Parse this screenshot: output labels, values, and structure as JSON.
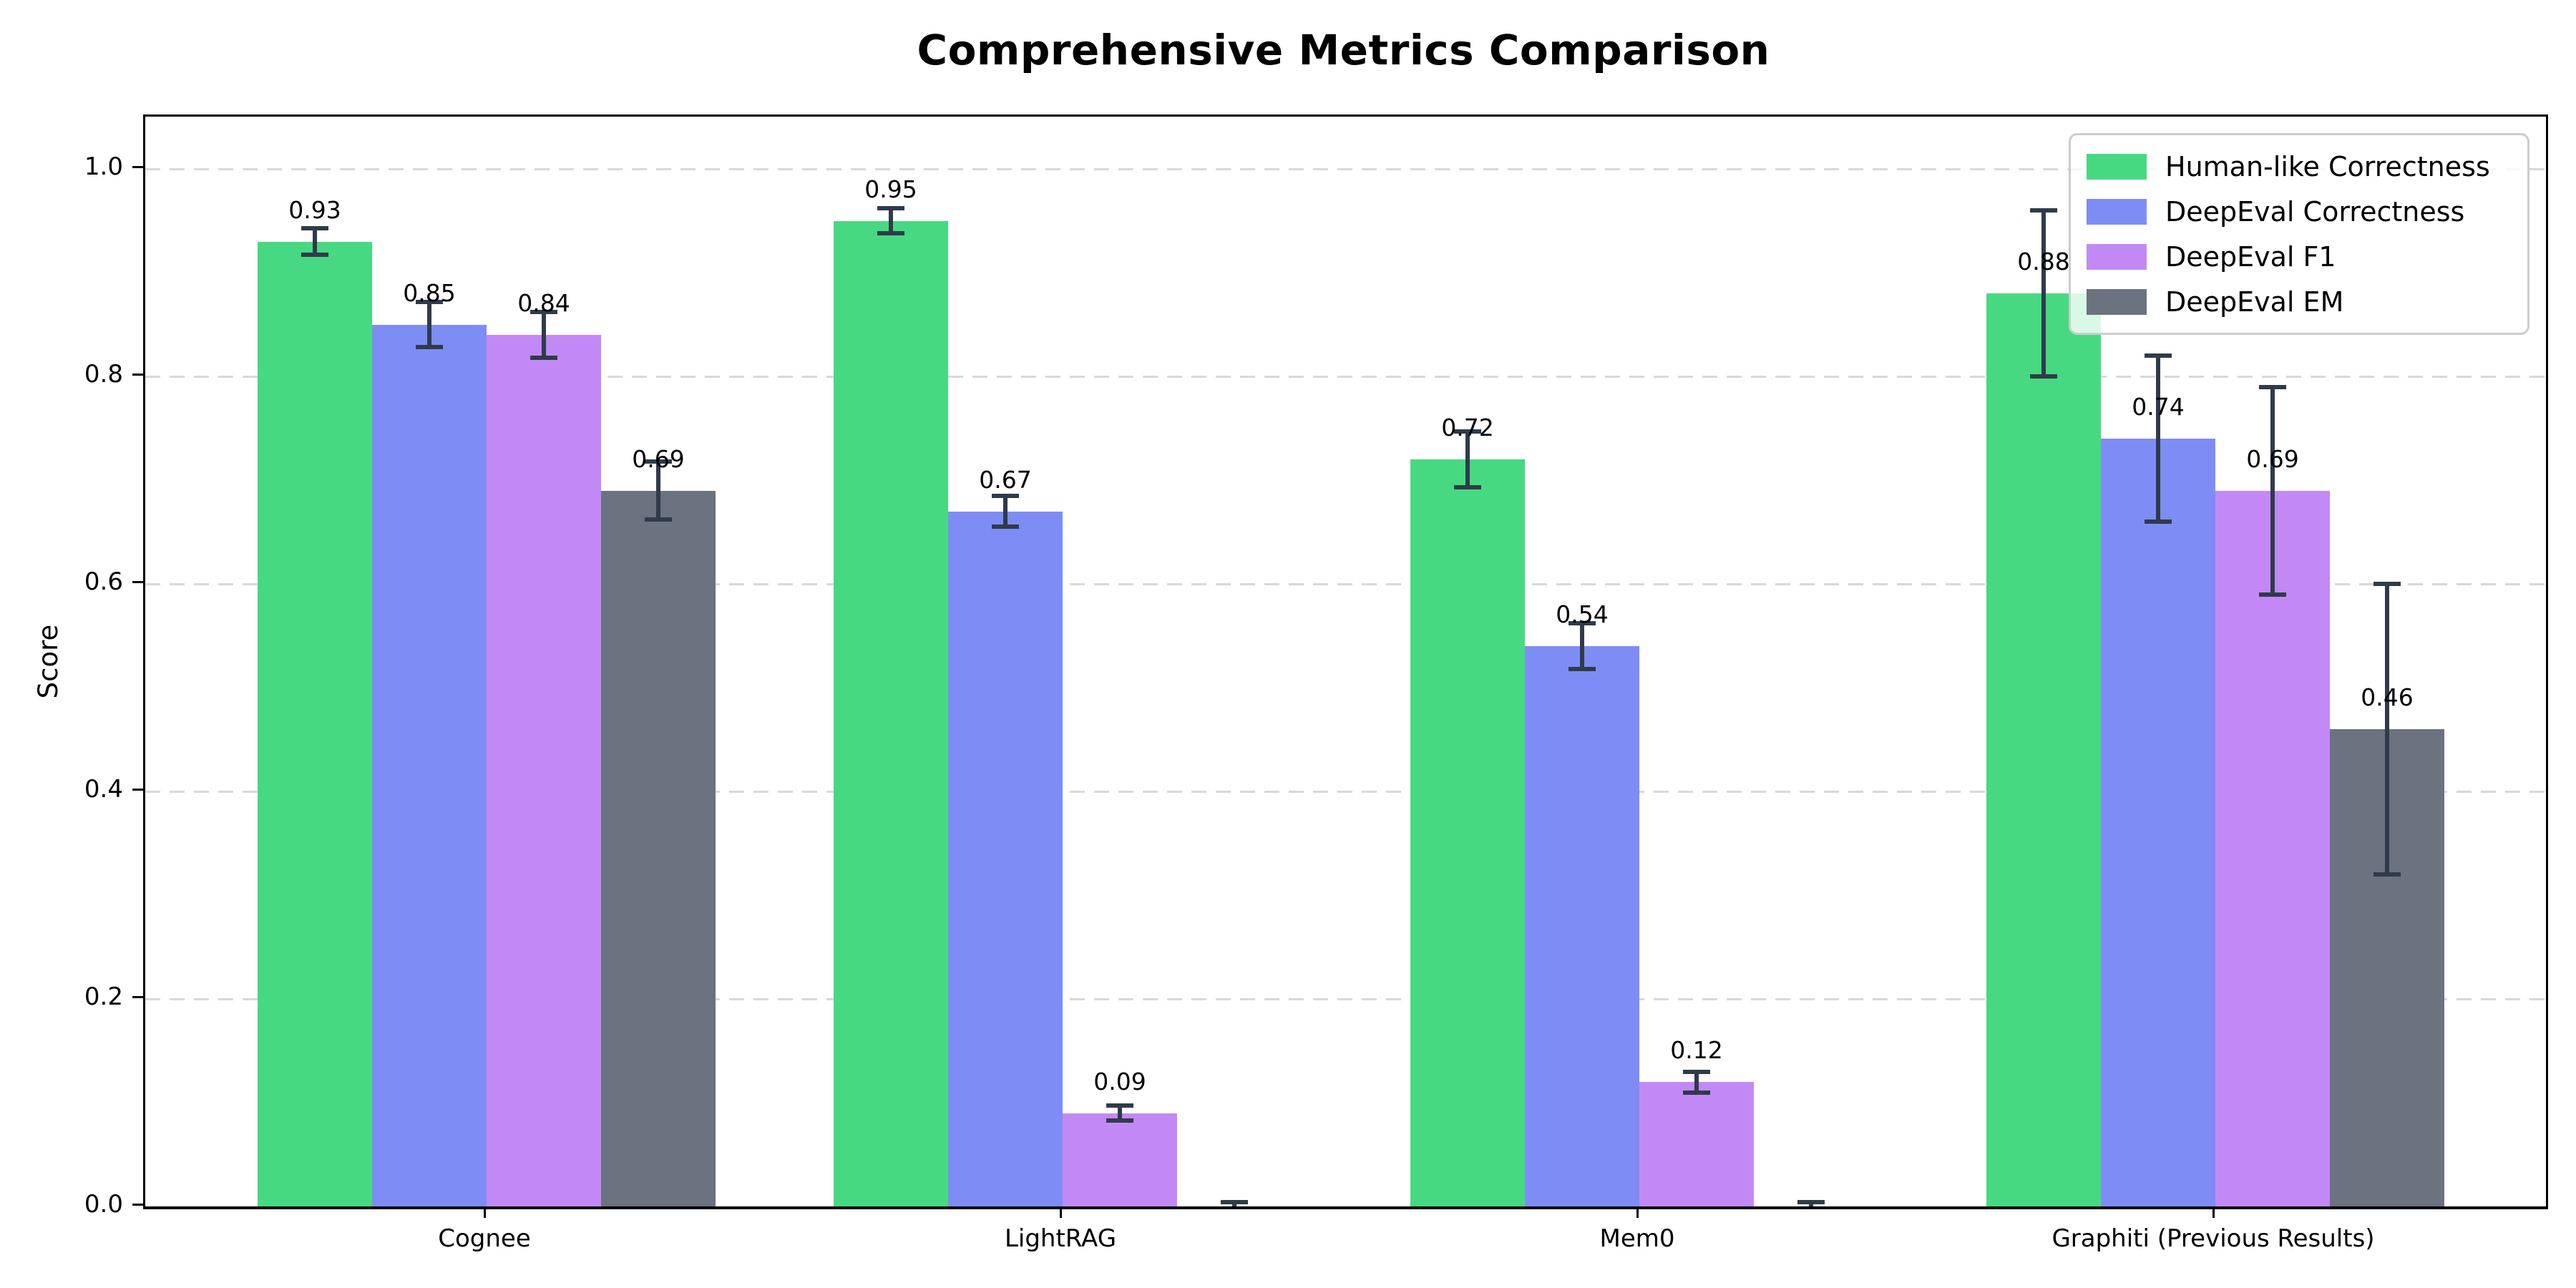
{
  "chart_data": {
    "type": "bar",
    "title": "Comprehensive Metrics Comparison",
    "ylabel": "Score",
    "xlabel": "",
    "categories": [
      "Cognee",
      "LightRAG",
      "Mem0",
      "Graphiti (Previous Results)"
    ],
    "series": [
      {
        "name": "Human-like Correctness",
        "color": "#47d981",
        "values": [
          0.93,
          0.95,
          0.72,
          0.88
        ],
        "errors": [
          0.013,
          0.012,
          0.027,
          0.08
        ],
        "labels": [
          "0.93",
          "0.95",
          "0.72",
          "0.88"
        ]
      },
      {
        "name": "DeepEval Correctness",
        "color": "#7e8df5",
        "values": [
          0.85,
          0.67,
          0.54,
          0.74
        ],
        "errors": [
          0.022,
          0.015,
          0.022,
          0.08
        ],
        "labels": [
          "0.85",
          "0.67",
          "0.54",
          "0.74"
        ]
      },
      {
        "name": "DeepEval F1",
        "color": "#c289f6",
        "values": [
          0.84,
          0.09,
          0.12,
          0.69
        ],
        "errors": [
          0.022,
          0.007,
          0.01,
          0.1
        ],
        "labels": [
          "0.84",
          "0.09",
          "0.12",
          "0.69"
        ]
      },
      {
        "name": "DeepEval EM",
        "color": "#6b7280",
        "values": [
          0.69,
          0.0,
          0.0,
          0.46
        ],
        "errors": [
          0.028,
          0.004,
          0.004,
          0.14
        ],
        "labels": [
          "0.69",
          "",
          "",
          "0.46"
        ]
      }
    ],
    "ylim": [
      0,
      1.05
    ],
    "yticks": [
      "0.0",
      "0.2",
      "0.4",
      "0.6",
      "0.8",
      "1.0"
    ],
    "grid": "horizontal dashed at y ticks",
    "legend_position": "upper right",
    "colors": {
      "error_bar": "#2f3b4a",
      "grid_line": "#d8d8d8",
      "axis": "#000000",
      "background": "#ffffff"
    }
  }
}
